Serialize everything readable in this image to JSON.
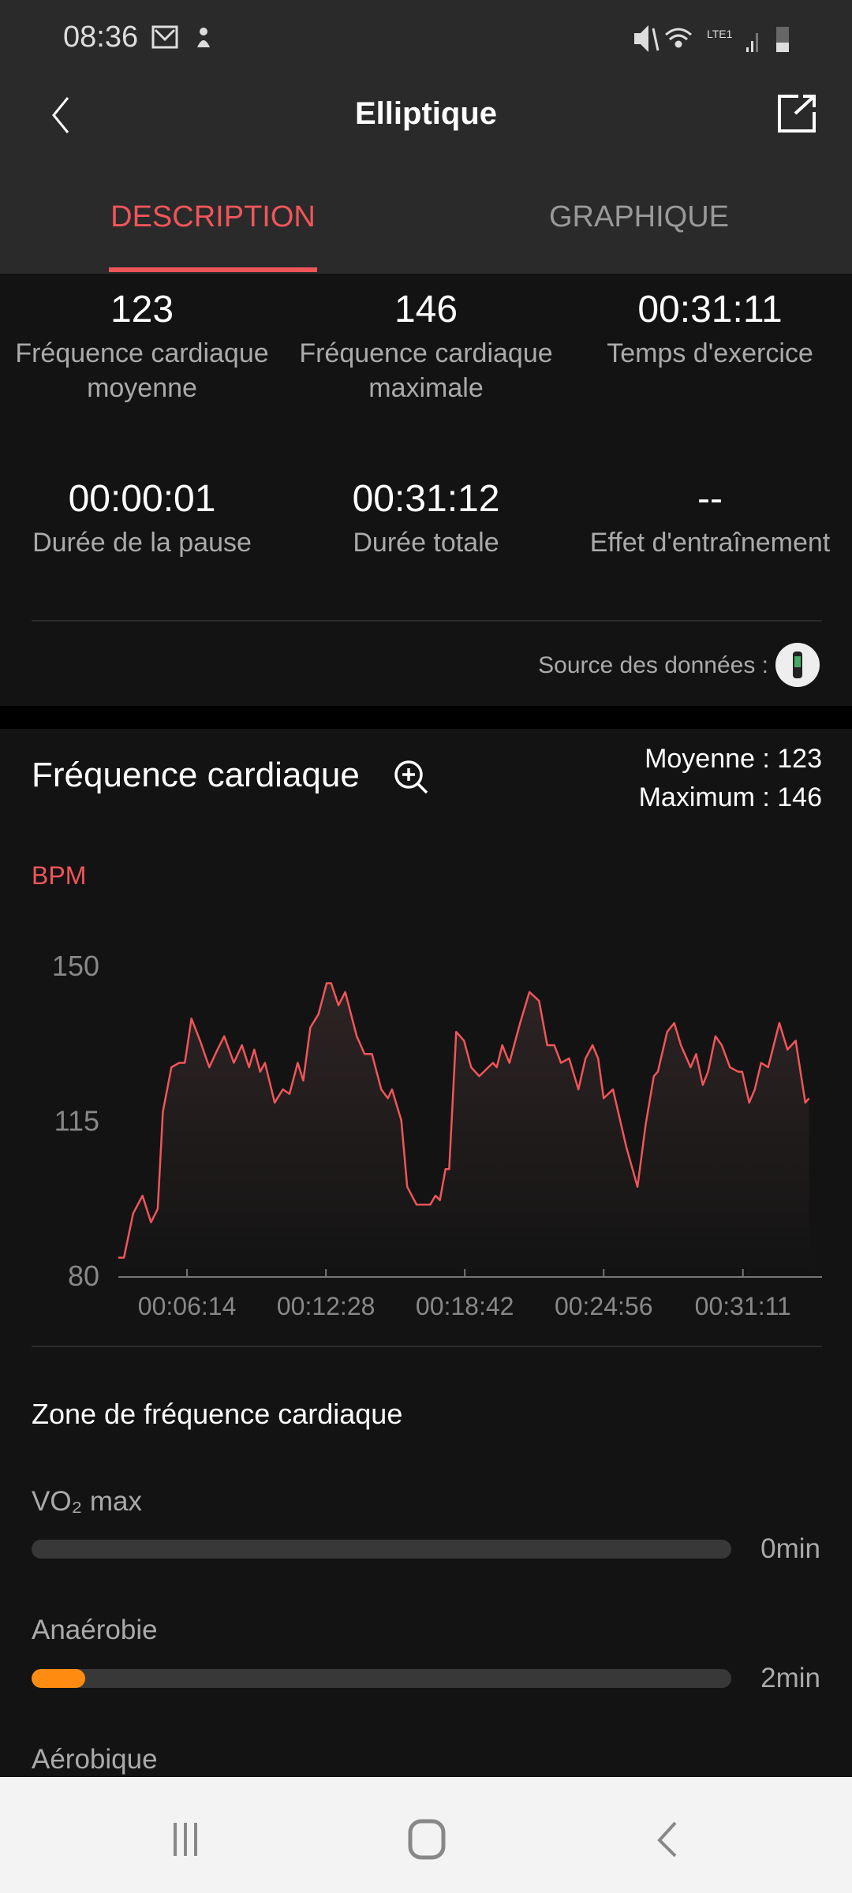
{
  "status_bar": {
    "time": "08:36",
    "icons": [
      "gmail-icon",
      "notification-icon",
      "mute-icon",
      "wifi-icon",
      "volte-lte-icon",
      "signal-icon",
      "battery-icon"
    ],
    "network": "LTE1"
  },
  "header": {
    "title": "Elliptique",
    "back_icon": "chevron-left-icon",
    "share_icon": "share-icon"
  },
  "tabs": [
    {
      "label": "DESCRIPTION",
      "active": true
    },
    {
      "label": "GRAPHIQUE",
      "active": false
    }
  ],
  "stats": [
    {
      "value": "123",
      "label": "Fréquence cardiaque moyenne"
    },
    {
      "value": "146",
      "label": "Fréquence cardiaque maximale"
    },
    {
      "value": "00:31:11",
      "label": "Temps d'exercice"
    },
    {
      "value": "00:00:01",
      "label": "Durée de la pause"
    },
    {
      "value": "00:31:12",
      "label": "Durée totale"
    },
    {
      "value": "--",
      "label": "Effet d'entraînement"
    }
  ],
  "source": {
    "label": "Source des données :",
    "device_icon": "fitness-band-icon"
  },
  "heart_rate": {
    "title": "Fréquence cardiaque",
    "zoom_icon": "zoom-in-icon",
    "average": "Moyenne : 123",
    "maximum": "Maximum : 146",
    "unit": "BPM"
  },
  "chart_data": {
    "type": "area",
    "ylabel": "BPM",
    "ylim": [
      80,
      150
    ],
    "yticks": [
      "150",
      "115",
      "80"
    ],
    "xtick_labels": [
      "00:06:14",
      "00:12:28",
      "00:18:42",
      "00:24:56",
      "00:31:11"
    ],
    "xticks_seconds": [
      374,
      748,
      1122,
      1496,
      1871
    ],
    "xlim_seconds": [
      189,
      2084
    ],
    "grid": false,
    "color": "#f0555a",
    "x_seconds": [
      189,
      204,
      229,
      254,
      277,
      295,
      309,
      332,
      353,
      368,
      386,
      409,
      434,
      456,
      474,
      500,
      522,
      541,
      555,
      571,
      584,
      610,
      632,
      650,
      672,
      687,
      706,
      728,
      750,
      762,
      782,
      800,
      831,
      852,
      872,
      897,
      915,
      926,
      951,
      967,
      992,
      1014,
      1029,
      1043,
      1055,
      1070,
      1080,
      1099,
      1120,
      1139,
      1161,
      1198,
      1208,
      1223,
      1242,
      1271,
      1296,
      1322,
      1344,
      1363,
      1381,
      1403,
      1428,
      1447,
      1466,
      1481,
      1496,
      1521,
      1557,
      1587,
      1609,
      1631,
      1642,
      1667,
      1686,
      1704,
      1730,
      1745,
      1763,
      1777,
      1797,
      1814,
      1836,
      1858,
      1869,
      1888,
      1903,
      1920,
      1939,
      1954,
      1969,
      1991,
      2013,
      2039,
      2049
    ],
    "bpm": [
      84,
      84,
      94,
      98,
      92,
      95,
      117,
      127,
      128,
      128,
      138,
      133,
      127,
      131,
      134,
      128,
      132,
      127,
      131,
      126,
      128,
      119,
      122,
      121,
      128,
      124,
      136,
      139,
      146,
      146,
      141,
      144,
      134,
      130,
      130,
      122,
      120,
      122,
      115,
      100,
      96,
      96,
      96,
      98,
      97,
      104,
      104,
      135,
      133,
      127,
      125,
      128,
      127,
      132,
      128,
      137,
      144,
      142,
      132,
      132,
      128,
      129,
      122,
      129,
      132,
      129,
      120,
      122,
      109,
      100,
      114,
      125,
      126,
      135,
      137,
      132,
      127,
      130,
      123,
      126,
      134,
      132,
      127,
      126,
      126,
      119,
      122,
      128,
      127,
      132,
      137,
      131,
      133,
      119,
      120
    ]
  },
  "zones": {
    "title": "Zone de fréquence cardiaque",
    "items": [
      {
        "label": "VO₂ max",
        "value": "0min",
        "fraction": 0,
        "color": "#ff8c10"
      },
      {
        "label": "Anaérobie",
        "value": "2min",
        "fraction": 0.077,
        "color": "#ff8c10"
      },
      {
        "label": "Aérobique"
      }
    ]
  },
  "colors": {
    "accent": "#f0555a",
    "header_bg": "#2a2a2a",
    "bg": "#131313",
    "zone_fill": "#ff8c10"
  },
  "nav_bar": {
    "icons": [
      "recent-apps-icon",
      "home-icon",
      "back-icon"
    ]
  }
}
